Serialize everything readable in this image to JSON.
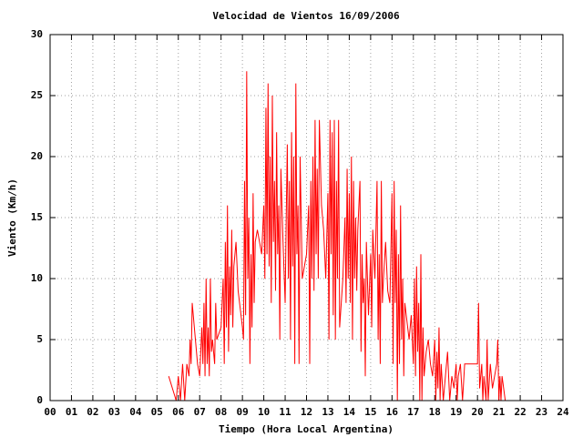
{
  "chart_data": {
    "type": "line",
    "title": "Velocidad de Vientos 16/09/2006",
    "xlabel": "Tiempo (Hora Local Argentina)",
    "ylabel": "Viento (Km/h)",
    "color": "#ff0000",
    "grid": true,
    "xlim": [
      0,
      24
    ],
    "ylim": [
      0,
      30
    ],
    "xticks": [
      {
        "value": 0,
        "label": "00"
      },
      {
        "value": 1,
        "label": "01"
      },
      {
        "value": 2,
        "label": "02"
      },
      {
        "value": 3,
        "label": "03"
      },
      {
        "value": 4,
        "label": "04"
      },
      {
        "value": 5,
        "label": "05"
      },
      {
        "value": 6,
        "label": "06"
      },
      {
        "value": 7,
        "label": "07"
      },
      {
        "value": 8,
        "label": "08"
      },
      {
        "value": 9,
        "label": "09"
      },
      10,
      11,
      12,
      13,
      14,
      15,
      16,
      17,
      18,
      19,
      20,
      21,
      22,
      23,
      24
    ],
    "yticks": [
      0,
      5,
      10,
      15,
      20,
      25,
      30
    ],
    "x": [
      5.55,
      5.9,
      6.0,
      6.1,
      6.2,
      6.3,
      6.4,
      6.5,
      6.55,
      6.6,
      6.65,
      6.9,
      7.0,
      7.1,
      7.15,
      7.2,
      7.25,
      7.3,
      7.35,
      7.4,
      7.45,
      7.5,
      7.55,
      7.6,
      7.7,
      7.75,
      7.8,
      8.0,
      8.1,
      8.15,
      8.2,
      8.25,
      8.3,
      8.35,
      8.4,
      8.45,
      8.5,
      8.55,
      8.6,
      8.7,
      8.8,
      9.0,
      9.05,
      9.1,
      9.15,
      9.2,
      9.25,
      9.3,
      9.35,
      9.4,
      9.45,
      9.5,
      9.55,
      9.6,
      9.7,
      9.9,
      10.0,
      10.05,
      10.1,
      10.15,
      10.2,
      10.25,
      10.3,
      10.35,
      10.4,
      10.45,
      10.5,
      10.55,
      10.6,
      10.65,
      10.7,
      10.75,
      10.8,
      10.9,
      11.0,
      11.05,
      11.1,
      11.15,
      11.2,
      11.25,
      11.3,
      11.35,
      11.4,
      11.45,
      11.5,
      11.55,
      11.6,
      11.65,
      11.7,
      11.8,
      12.0,
      12.1,
      12.15,
      12.2,
      12.25,
      12.3,
      12.35,
      12.4,
      12.45,
      12.5,
      12.55,
      12.6,
      12.7,
      12.8,
      12.9,
      13.0,
      13.05,
      13.1,
      13.15,
      13.2,
      13.25,
      13.3,
      13.35,
      13.4,
      13.45,
      13.5,
      13.55,
      13.7,
      13.8,
      13.85,
      13.9,
      13.95,
      14.0,
      14.05,
      14.1,
      14.15,
      14.2,
      14.25,
      14.3,
      14.35,
      14.4,
      14.5,
      14.55,
      14.6,
      14.65,
      14.7,
      14.75,
      14.8,
      14.9,
      15.0,
      15.05,
      15.1,
      15.2,
      15.3,
      15.35,
      15.4,
      15.45,
      15.5,
      15.55,
      15.6,
      15.7,
      15.8,
      15.9,
      16.0,
      16.05,
      16.1,
      16.15,
      16.2,
      16.25,
      16.3,
      16.35,
      16.4,
      16.45,
      16.5,
      16.55,
      16.6,
      16.8,
      16.9,
      17.0,
      17.05,
      17.1,
      17.15,
      17.2,
      17.25,
      17.3,
      17.35,
      17.4,
      17.45,
      17.5,
      17.6,
      17.7,
      17.8,
      17.9,
      18.0,
      18.05,
      18.1,
      18.15,
      18.2,
      18.25,
      18.3,
      18.4,
      18.5,
      18.6,
      18.7,
      18.8,
      18.9,
      19.0,
      19.05,
      19.1,
      19.2,
      19.3,
      19.4,
      19.6,
      19.8,
      20.0,
      20.05,
      20.1,
      20.2,
      20.25,
      20.3,
      20.4,
      20.45,
      20.5,
      20.6,
      20.7,
      20.8,
      20.9,
      20.95,
      21.0,
      21.05,
      21.1,
      21.15,
      21.3
    ],
    "values": [
      2,
      0,
      2,
      0,
      3,
      0,
      3,
      2,
      5,
      3,
      8,
      3,
      2,
      6,
      3,
      8,
      2,
      10,
      3,
      6,
      2,
      10,
      4,
      5,
      3,
      8,
      5,
      6,
      10,
      3,
      13,
      6,
      16,
      4,
      11,
      7,
      14,
      6,
      11,
      13,
      9,
      6,
      5,
      18,
      7,
      27,
      10,
      15,
      3,
      12,
      6,
      17,
      8,
      13,
      14,
      12,
      16,
      10,
      24,
      12,
      26,
      11,
      20,
      8,
      25,
      13,
      18,
      9,
      22,
      12,
      16,
      5,
      19,
      13,
      8,
      15,
      21,
      10,
      18,
      5,
      22,
      11,
      20,
      3,
      26,
      12,
      16,
      3,
      20,
      10,
      12,
      16,
      3,
      18,
      10,
      20,
      9,
      23,
      12,
      19,
      10,
      23,
      16,
      14,
      10,
      17,
      5,
      23,
      12,
      22,
      7,
      23,
      5,
      18,
      10,
      23,
      6,
      10,
      15,
      8,
      19,
      10,
      17,
      8,
      20,
      5,
      18,
      10,
      15,
      9,
      14,
      18,
      4,
      12,
      8,
      10,
      2,
      13,
      7,
      12,
      6,
      14,
      10,
      18,
      5,
      12,
      3,
      18,
      8,
      10,
      13,
      9,
      8,
      17,
      3,
      18,
      8,
      14,
      0,
      12,
      3,
      16,
      5,
      10,
      2,
      8,
      5,
      7,
      3,
      10,
      2,
      11,
      4,
      8,
      0,
      12,
      0,
      6,
      2,
      4,
      5,
      3,
      2,
      5,
      0,
      4,
      1,
      6,
      0,
      3,
      0,
      2,
      4,
      0,
      2,
      1,
      3,
      0,
      2,
      3,
      0,
      3,
      3,
      3,
      3,
      8,
      1,
      3,
      0,
      2,
      0,
      5,
      0,
      3,
      1,
      2,
      3,
      5,
      0,
      2,
      0,
      2,
      0
    ]
  }
}
